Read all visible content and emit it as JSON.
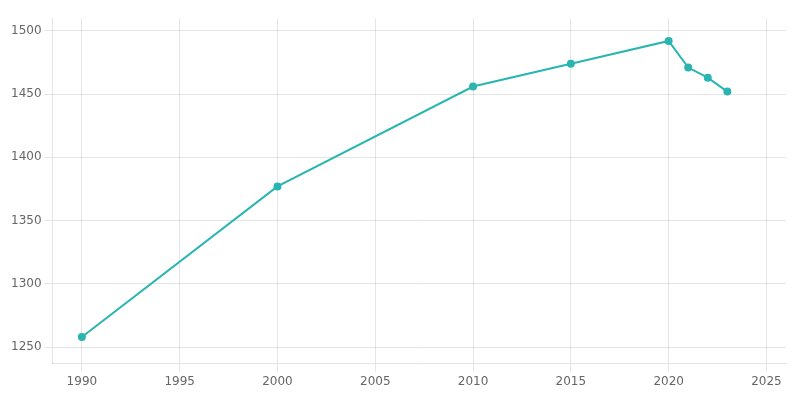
{
  "chart_data": {
    "type": "line",
    "x": [
      1990,
      2000,
      2010,
      2015,
      2020,
      2021,
      2022,
      2023
    ],
    "values": [
      1258,
      1377,
      1456,
      1474,
      1492,
      1471,
      1463,
      1452
    ],
    "color": "#2ab5b0",
    "marker": "circle",
    "xlim": [
      1988.5,
      2026
    ],
    "ylim": [
      1237,
      1510
    ],
    "xticks": [
      1990,
      1995,
      2000,
      2005,
      2010,
      2015,
      2020,
      2025
    ],
    "yticks": [
      1250,
      1300,
      1350,
      1400,
      1450,
      1500
    ],
    "grid": true
  }
}
